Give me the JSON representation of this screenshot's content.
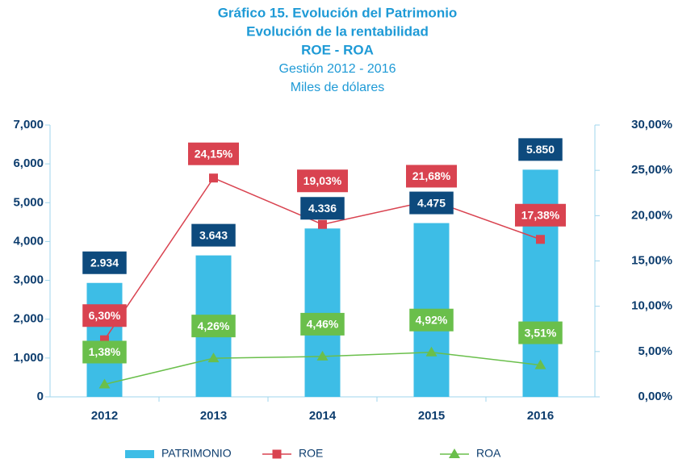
{
  "chart_data": {
    "type": "bar_line",
    "title": "Gráfico 15. Evolución del Patrimonio",
    "subtitle": "Evolución de la rentabilidad",
    "subtitle2": "ROE - ROA",
    "subtitle3": "Gestión 2012 - 2016",
    "subtitle4": "Miles de dólares",
    "categories": [
      "2012",
      "2013",
      "2014",
      "2015",
      "2016"
    ],
    "series": [
      {
        "name": "PATRIMONIO",
        "type": "bar",
        "color": "#3dbde6",
        "values": [
          2934,
          3643,
          4336,
          4475,
          5850
        ],
        "value_labels": [
          "2.934",
          "3.643",
          "4.336",
          "4.475",
          "5.850"
        ],
        "label_color": "#0d4a7d"
      },
      {
        "name": "ROE",
        "type": "line",
        "axis": "y2",
        "marker": "square",
        "color": "#d94350",
        "values": [
          6.3,
          24.15,
          19.03,
          21.68,
          17.38
        ],
        "value_labels": [
          "6,30%",
          "24,15%",
          "19,03%",
          "21,68%",
          "17,38%"
        ],
        "label_color": "#d94350"
      },
      {
        "name": "ROA",
        "type": "line",
        "axis": "y2",
        "marker": "triangle",
        "color": "#6abf4b",
        "values": [
          1.38,
          4.26,
          4.46,
          4.92,
          3.51
        ],
        "value_labels": [
          "1,38%",
          "4,26%",
          "4,46%",
          "4,92%",
          "3,51%"
        ],
        "label_color": "#6abf4b"
      }
    ],
    "ylim": [
      0,
      7000
    ],
    "yticks": [
      0,
      {
        "value": 1000,
        "label": "1,000"
      },
      {
        "value": 2000,
        "label": "2,000"
      },
      {
        "value": 3000,
        "label": "3,000"
      },
      {
        "value": 4000,
        "label": "4,000"
      },
      {
        "value": 5000,
        "label": "5,000"
      },
      {
        "value": 6000,
        "label": "6,000"
      },
      {
        "value": 7000,
        "label": "7,000"
      }
    ],
    "y2lim": [
      0,
      30
    ],
    "y2ticks": [
      {
        "value": 0,
        "label": "0,00%"
      },
      {
        "value": 5,
        "label": "5,00%"
      },
      {
        "value": 10,
        "label": "10,00%"
      },
      {
        "value": 15,
        "label": "15,00%"
      },
      {
        "value": 20,
        "label": "20,00%"
      },
      {
        "value": 25,
        "label": "25,00%"
      },
      {
        "value": 30,
        "label": "30,00%"
      }
    ],
    "legend": "bottom"
  }
}
